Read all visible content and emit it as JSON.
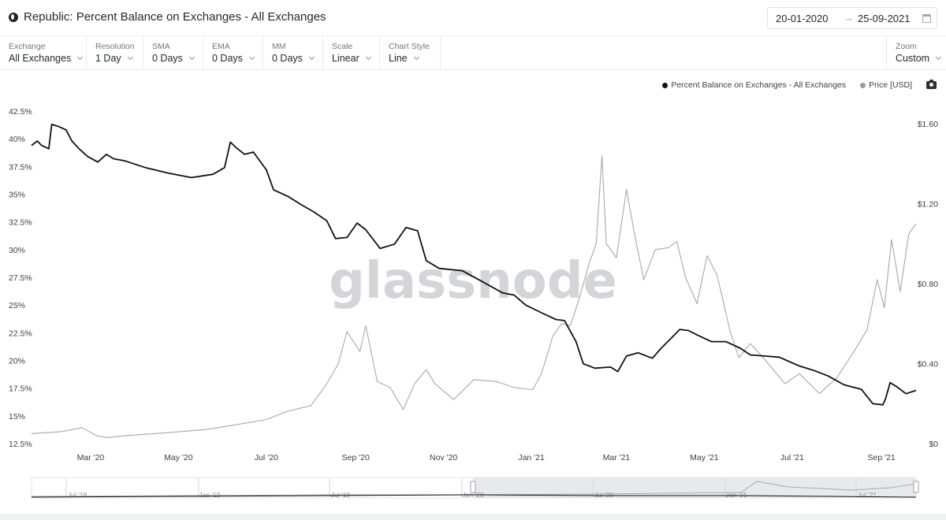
{
  "header": {
    "title": "Republic: Percent Balance on Exchanges - All Exchanges",
    "date_start": "20-01-2020",
    "date_arrow": "→",
    "date_end": "25-09-2021"
  },
  "toolbar": {
    "controls": [
      {
        "label": "Exchange",
        "value": "All Exchanges"
      },
      {
        "label": "Resolution",
        "value": "1 Day"
      },
      {
        "label": "SMA",
        "value": "0 Days"
      },
      {
        "label": "EMA",
        "value": "0 Days"
      },
      {
        "label": "MM",
        "value": "0 Days"
      },
      {
        "label": "Scale",
        "value": "Linear"
      },
      {
        "label": "Chart Style",
        "value": "Line"
      }
    ],
    "zoom": {
      "label": "Zoom",
      "value": "Custom"
    }
  },
  "legend": {
    "items": [
      {
        "label": "Percent Balance on Exchanges - All Exchanges",
        "color": "#111111"
      },
      {
        "label": "Price [USD]",
        "color": "#9b9b9b"
      }
    ]
  },
  "watermark": "glassnode",
  "colors": {
    "balance": "#111111",
    "price": "#a8a8a8",
    "navigator_bg": "#e8e9eb"
  },
  "chart_data": {
    "type": "line",
    "x_range": [
      "2020-01-20",
      "2021-09-25"
    ],
    "x_ticks": [
      {
        "date": "2020-03-01",
        "label": "Mar '20"
      },
      {
        "date": "2020-05-01",
        "label": "May '20"
      },
      {
        "date": "2020-07-01",
        "label": "Jul '20"
      },
      {
        "date": "2020-09-01",
        "label": "Sep '20"
      },
      {
        "date": "2020-11-01",
        "label": "Nov '20"
      },
      {
        "date": "2021-01-01",
        "label": "Jan '21"
      },
      {
        "date": "2021-03-01",
        "label": "Mar '21"
      },
      {
        "date": "2021-05-01",
        "label": "May '21"
      },
      {
        "date": "2021-07-01",
        "label": "Jul '21"
      },
      {
        "date": "2021-09-01",
        "label": "Sep '21"
      }
    ],
    "y_left": {
      "min": 12.5,
      "max": 42.5,
      "ticks": [
        12.5,
        15,
        17.5,
        20,
        22.5,
        25,
        27.5,
        30,
        32.5,
        35,
        37.5,
        40,
        42.5
      ],
      "tick_labels": [
        "12.5%",
        "15%",
        "17.5%",
        "20%",
        "22.5%",
        "25%",
        "27.5%",
        "30%",
        "32.5%",
        "35%",
        "37.5%",
        "40%",
        "42.5%"
      ]
    },
    "y_right": {
      "min": 0,
      "max": 1.6,
      "ticks": [
        0,
        0.4,
        0.8,
        1.2,
        1.6
      ],
      "tick_labels": [
        "$0",
        "$0.40",
        "$0.80",
        "$1.20",
        "$1.60"
      ]
    },
    "grid": false,
    "legend_position": "top-right",
    "series": [
      {
        "name": "Percent Balance on Exchanges - All Exchanges",
        "axis": "left",
        "points": [
          [
            "2020-01-20",
            39.4
          ],
          [
            "2020-01-24",
            39.8
          ],
          [
            "2020-01-27",
            39.4
          ],
          [
            "2020-02-01",
            39.1
          ],
          [
            "2020-02-03",
            41.3
          ],
          [
            "2020-02-08",
            41.1
          ],
          [
            "2020-02-13",
            40.8
          ],
          [
            "2020-02-17",
            39.8
          ],
          [
            "2020-02-22",
            39.1
          ],
          [
            "2020-02-28",
            38.4
          ],
          [
            "2020-03-06",
            37.9
          ],
          [
            "2020-03-12",
            38.6
          ],
          [
            "2020-03-17",
            38.2
          ],
          [
            "2020-03-25",
            38.0
          ],
          [
            "2020-04-08",
            37.4
          ],
          [
            "2020-04-24",
            36.9
          ],
          [
            "2020-05-10",
            36.5
          ],
          [
            "2020-05-25",
            36.8
          ],
          [
            "2020-06-02",
            37.4
          ],
          [
            "2020-06-06",
            39.7
          ],
          [
            "2020-06-10",
            39.2
          ],
          [
            "2020-06-16",
            38.6
          ],
          [
            "2020-06-22",
            38.8
          ],
          [
            "2020-07-01",
            37.2
          ],
          [
            "2020-07-06",
            35.4
          ],
          [
            "2020-07-16",
            34.8
          ],
          [
            "2020-07-26",
            34.0
          ],
          [
            "2020-08-03",
            33.4
          ],
          [
            "2020-08-12",
            32.6
          ],
          [
            "2020-08-18",
            31.0
          ],
          [
            "2020-08-26",
            31.1
          ],
          [
            "2020-09-02",
            32.4
          ],
          [
            "2020-09-08",
            31.8
          ],
          [
            "2020-09-18",
            30.1
          ],
          [
            "2020-09-28",
            30.5
          ],
          [
            "2020-10-06",
            32.0
          ],
          [
            "2020-10-14",
            31.7
          ],
          [
            "2020-10-20",
            29.0
          ],
          [
            "2020-10-29",
            28.3
          ],
          [
            "2020-11-14",
            28.1
          ],
          [
            "2020-11-28",
            27.1
          ],
          [
            "2020-12-12",
            26.1
          ],
          [
            "2020-12-20",
            25.9
          ],
          [
            "2020-12-28",
            25.0
          ],
          [
            "2021-01-08",
            24.3
          ],
          [
            "2021-01-18",
            23.7
          ],
          [
            "2021-01-24",
            23.6
          ],
          [
            "2021-02-01",
            21.7
          ],
          [
            "2021-02-06",
            19.7
          ],
          [
            "2021-02-14",
            19.3
          ],
          [
            "2021-02-25",
            19.4
          ],
          [
            "2021-03-02",
            19.0
          ],
          [
            "2021-03-08",
            20.4
          ],
          [
            "2021-03-16",
            20.7
          ],
          [
            "2021-03-26",
            20.2
          ],
          [
            "2021-04-01",
            21.1
          ],
          [
            "2021-04-08",
            22.0
          ],
          [
            "2021-04-14",
            22.8
          ],
          [
            "2021-04-20",
            22.7
          ],
          [
            "2021-04-26",
            22.3
          ],
          [
            "2021-05-06",
            21.7
          ],
          [
            "2021-05-16",
            21.7
          ],
          [
            "2021-05-26",
            21.1
          ],
          [
            "2021-06-02",
            20.5
          ],
          [
            "2021-06-12",
            20.4
          ],
          [
            "2021-06-22",
            20.3
          ],
          [
            "2021-07-06",
            19.5
          ],
          [
            "2021-07-16",
            19.1
          ],
          [
            "2021-07-26",
            18.6
          ],
          [
            "2021-08-06",
            17.8
          ],
          [
            "2021-08-18",
            17.4
          ],
          [
            "2021-08-26",
            16.1
          ],
          [
            "2021-09-02",
            16.0
          ],
          [
            "2021-09-04",
            16.6
          ],
          [
            "2021-09-07",
            18.0
          ],
          [
            "2021-09-12",
            17.6
          ],
          [
            "2021-09-18",
            17.0
          ],
          [
            "2021-09-25",
            17.3
          ]
        ]
      },
      {
        "name": "Price [USD]",
        "axis": "right",
        "points": [
          [
            "2020-01-20",
            0.05
          ],
          [
            "2020-02-10",
            0.06
          ],
          [
            "2020-02-24",
            0.08
          ],
          [
            "2020-03-05",
            0.04
          ],
          [
            "2020-03-12",
            0.03
          ],
          [
            "2020-03-25",
            0.04
          ],
          [
            "2020-04-15",
            0.05
          ],
          [
            "2020-05-20",
            0.07
          ],
          [
            "2020-06-15",
            0.1
          ],
          [
            "2020-07-01",
            0.12
          ],
          [
            "2020-07-15",
            0.16
          ],
          [
            "2020-08-01",
            0.19
          ],
          [
            "2020-08-12",
            0.3
          ],
          [
            "2020-08-20",
            0.4
          ],
          [
            "2020-08-26",
            0.56
          ],
          [
            "2020-09-04",
            0.46
          ],
          [
            "2020-09-08",
            0.59
          ],
          [
            "2020-09-16",
            0.31
          ],
          [
            "2020-09-25",
            0.28
          ],
          [
            "2020-10-04",
            0.17
          ],
          [
            "2020-10-12",
            0.3
          ],
          [
            "2020-10-20",
            0.37
          ],
          [
            "2020-10-26",
            0.3
          ],
          [
            "2020-11-08",
            0.22
          ],
          [
            "2020-11-22",
            0.32
          ],
          [
            "2020-12-08",
            0.31
          ],
          [
            "2020-12-20",
            0.28
          ],
          [
            "2021-01-02",
            0.27
          ],
          [
            "2021-01-08",
            0.35
          ],
          [
            "2021-01-16",
            0.54
          ],
          [
            "2021-01-22",
            0.6
          ],
          [
            "2021-01-28",
            0.59
          ],
          [
            "2021-02-03",
            0.72
          ],
          [
            "2021-02-10",
            0.9
          ],
          [
            "2021-02-15",
            1.0
          ],
          [
            "2021-02-19",
            1.44
          ],
          [
            "2021-02-22",
            1.0
          ],
          [
            "2021-03-01",
            0.93
          ],
          [
            "2021-03-08",
            1.27
          ],
          [
            "2021-03-14",
            1.03
          ],
          [
            "2021-03-20",
            0.82
          ],
          [
            "2021-03-28",
            0.97
          ],
          [
            "2021-04-06",
            0.98
          ],
          [
            "2021-04-12",
            1.01
          ],
          [
            "2021-04-18",
            0.83
          ],
          [
            "2021-04-26",
            0.7
          ],
          [
            "2021-05-03",
            0.94
          ],
          [
            "2021-05-10",
            0.84
          ],
          [
            "2021-05-19",
            0.56
          ],
          [
            "2021-05-25",
            0.43
          ],
          [
            "2021-06-02",
            0.5
          ],
          [
            "2021-06-12",
            0.42
          ],
          [
            "2021-06-26",
            0.3
          ],
          [
            "2021-07-06",
            0.35
          ],
          [
            "2021-07-20",
            0.25
          ],
          [
            "2021-08-01",
            0.33
          ],
          [
            "2021-08-12",
            0.45
          ],
          [
            "2021-08-22",
            0.57
          ],
          [
            "2021-08-29",
            0.82
          ],
          [
            "2021-09-03",
            0.68
          ],
          [
            "2021-09-08",
            1.02
          ],
          [
            "2021-09-14",
            0.76
          ],
          [
            "2021-09-20",
            1.05
          ],
          [
            "2021-09-25",
            1.1
          ]
        ]
      }
    ]
  },
  "navigator": {
    "ticks": [
      "Jul '18",
      "Jan '19",
      "Jul '19",
      "Jan '20",
      "Jul '20",
      "Jan '21",
      "Jul '21"
    ]
  }
}
